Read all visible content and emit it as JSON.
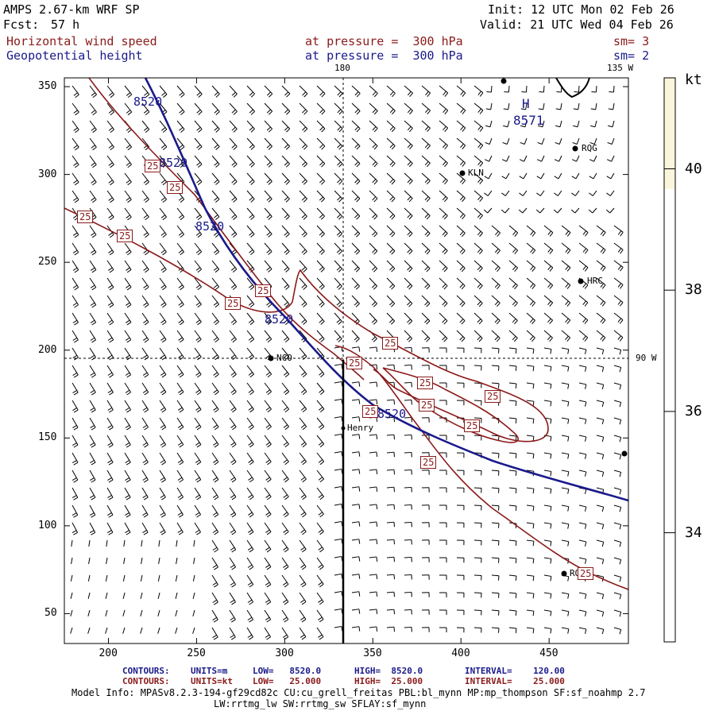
{
  "header": {
    "model": "AMPS 2.67-km WRF SP",
    "fcst_label": "Fcst:",
    "fcst_value": "57 h",
    "init": "Init: 12 UTC Mon 02 Feb 26",
    "valid": "Valid: 21 UTC Wed 04 Feb 26",
    "field1_name": "Horizontal wind speed",
    "field1_pressure": "at pressure =  300 hPa",
    "field1_sm": "sm= 3",
    "field2_name": "Geopotential height",
    "field2_pressure": "at pressure =  300 hPa",
    "field2_sm": "sm= 2"
  },
  "map": {
    "meridian_label_top": "180",
    "meridian_label_right_top": "135 W",
    "meridian_label_right": "90 W",
    "x_ticks": [
      "200",
      "250",
      "300",
      "350",
      "400",
      "450"
    ],
    "y_ticks": [
      "350",
      "300",
      "250",
      "200",
      "150",
      "100",
      "50"
    ],
    "x_tick_values": [
      200,
      250,
      300,
      350,
      400,
      450
    ],
    "y_tick_values": [
      350,
      300,
      250,
      200,
      150,
      100,
      50
    ],
    "x_range": [
      175,
      495
    ],
    "y_range": [
      33,
      355
    ],
    "stations": [
      "RQG",
      "KLN",
      "HRC",
      "NCO",
      "Henry",
      "RQG"
    ],
    "high_label": "H",
    "high_value": "8571",
    "height_contour_value": "8520",
    "wind_contour_value": "25",
    "colors": {
      "height_contour": "#1a1a8c",
      "wind_contour": "#8b1a1a",
      "barbs": "#000000",
      "colorbar_fill": "#fbf5dc"
    }
  },
  "colorbar": {
    "unit": "kt",
    "labels": [
      "40",
      "38",
      "36",
      "34"
    ],
    "values": [
      40,
      38,
      36,
      34
    ],
    "range": [
      32.2,
      41.5
    ],
    "filled_from": 40
  },
  "footer": {
    "line1_label": "CONTOURS:",
    "line1_units": "UNITS=m",
    "line1_low": "LOW=   8520.0",
    "line1_high": "HIGH=  8520.0",
    "line1_interval": "INTERVAL=    120.00",
    "line2_label": "CONTOURS:",
    "line2_units": "UNITS=kt",
    "line2_low": "LOW=   25.000",
    "line2_high": "HIGH=  25.000",
    "line2_interval": "INTERVAL=    25.000",
    "model_info": "Model Info: MPASv8.2.3-194-gf29cd82c CU:cu_grell_freitas PBL:bl_mynn MP:mp_thompson SF:sf_noahmp 2.7",
    "model_info2": "LW:rrtmg_lw SW:rrtmg_sw SFLAY:sf_mynn"
  }
}
